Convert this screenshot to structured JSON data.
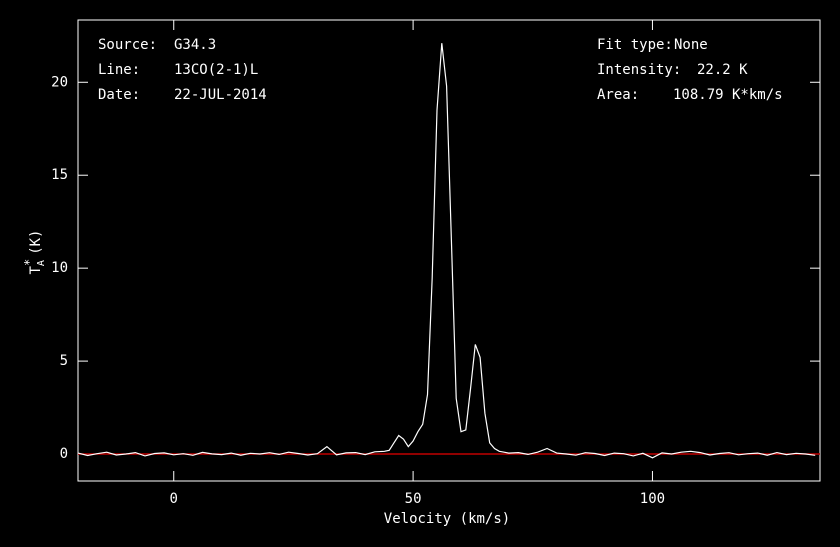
{
  "chart_data": {
    "type": "line",
    "x_label": "Velocity (km/s)",
    "y_label": {
      "base": "T",
      "sub": "A",
      "sup": "*",
      "unit": "(K)"
    },
    "info_left": [
      {
        "label": "Source:",
        "value": "G34.3"
      },
      {
        "label": "Line:",
        "value": "13CO(2-1)L"
      },
      {
        "label": "Date:",
        "value": "22-JUL-2014"
      }
    ],
    "info_right": [
      {
        "label": "Fit type:",
        "value": "None"
      },
      {
        "label": "Intensity:",
        "value": "22.2 K"
      },
      {
        "label": "Area:",
        "value": "108.79 K*km/s"
      }
    ],
    "xlim": [
      -20,
      135
    ],
    "ylim": [
      -1.45,
      23.35
    ],
    "xticks": [
      0,
      50,
      100
    ],
    "yticks": [
      0,
      5,
      10,
      15,
      20
    ],
    "baseline": {
      "value": 0,
      "color": "#c00000"
    },
    "series": [
      {
        "color": "#ffffff",
        "x": [
          -20,
          -18,
          -16,
          -14,
          -12,
          -10,
          -8,
          -6,
          -4,
          -2,
          0,
          2,
          4,
          6,
          8,
          10,
          12,
          14,
          16,
          18,
          20,
          22,
          24,
          26,
          28,
          30,
          32,
          34,
          36,
          38,
          40,
          42,
          44,
          45,
          46,
          47,
          48,
          49,
          50,
          51,
          52,
          53,
          54,
          55,
          56,
          57,
          58,
          59,
          60,
          61,
          62,
          63,
          64,
          65,
          66,
          67,
          68,
          69,
          70,
          72,
          74,
          76,
          78,
          80,
          82,
          84,
          86,
          88,
          90,
          92,
          94,
          96,
          98,
          100,
          102,
          104,
          106,
          108,
          110,
          112,
          114,
          116,
          118,
          120,
          122,
          124,
          126,
          128,
          130,
          132,
          134
        ],
        "values": [
          0.05,
          -0.08,
          0.02,
          0.1,
          -0.05,
          0.0,
          0.08,
          -0.1,
          0.03,
          0.06,
          -0.04,
          0.02,
          -0.07,
          0.09,
          0.01,
          -0.03,
          0.05,
          -0.06,
          0.04,
          0.0,
          0.07,
          -0.02,
          0.1,
          0.03,
          -0.05,
          0.02,
          0.4,
          -0.04,
          0.06,
          0.08,
          -0.03,
          0.12,
          0.15,
          0.2,
          0.6,
          1.0,
          0.8,
          0.4,
          0.7,
          1.2,
          1.6,
          3.2,
          9.5,
          18.5,
          22.1,
          19.8,
          11.5,
          3.0,
          1.2,
          1.3,
          3.5,
          5.9,
          5.2,
          2.2,
          0.6,
          0.3,
          0.15,
          0.1,
          0.05,
          0.08,
          -0.02,
          0.1,
          0.3,
          0.05,
          0.0,
          -0.06,
          0.07,
          0.03,
          -0.08,
          0.05,
          0.02,
          -0.1,
          0.04,
          -0.2,
          0.06,
          0.0,
          0.1,
          0.15,
          0.08,
          -0.05,
          0.03,
          0.07,
          -0.04,
          0.02,
          0.05,
          -0.06,
          0.08,
          -0.03,
          0.04,
          0.0,
          -0.07
        ]
      }
    ]
  }
}
